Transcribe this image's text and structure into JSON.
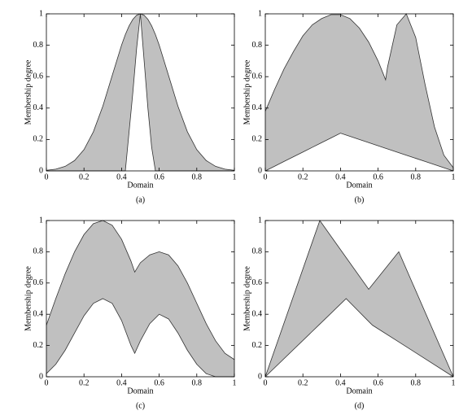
{
  "chart_data": [
    {
      "type": "band",
      "caption": "(a)",
      "xlabel": "Domain",
      "ylabel": "Membership degree",
      "color": "#c0c0c0",
      "x": [
        0,
        0.05,
        0.1,
        0.15,
        0.2,
        0.25,
        0.3,
        0.35,
        0.4,
        0.42,
        0.44,
        0.46,
        0.48,
        0.5,
        0.52,
        0.54,
        0.56,
        0.58,
        0.6,
        0.65,
        0.7,
        0.75,
        0.8,
        0.85,
        0.9,
        0.95,
        1
      ],
      "upper": [
        0.004,
        0.011,
        0.029,
        0.066,
        0.135,
        0.249,
        0.411,
        0.607,
        0.801,
        0.868,
        0.923,
        0.965,
        0.991,
        1,
        0.991,
        0.965,
        0.923,
        0.868,
        0.801,
        0.607,
        0.411,
        0.249,
        0.135,
        0.066,
        0.029,
        0.011,
        0.004
      ],
      "lower": [
        0,
        0,
        0,
        0,
        0,
        0,
        0,
        0,
        0,
        0,
        0.25,
        0.5,
        0.78,
        1,
        0.7,
        0.4,
        0.15,
        0,
        0,
        0,
        0,
        0,
        0,
        0,
        0,
        0,
        0
      ],
      "xlim": [
        0,
        1
      ],
      "ylim": [
        0,
        1
      ],
      "xticks": [
        0,
        0.2,
        0.4,
        0.6,
        0.8,
        1
      ],
      "yticks": [
        0,
        0.2,
        0.4,
        0.6,
        0.8,
        1
      ]
    },
    {
      "type": "band",
      "caption": "(b)",
      "xlabel": "Domain",
      "ylabel": "Membership degree",
      "color": "#c0c0c0",
      "x": [
        0,
        0.05,
        0.1,
        0.15,
        0.2,
        0.25,
        0.3,
        0.35,
        0.4,
        0.45,
        0.5,
        0.55,
        0.6,
        0.64,
        0.65,
        0.7,
        0.75,
        0.8,
        0.85,
        0.9,
        0.95,
        1
      ],
      "upper": [
        0.38,
        0.52,
        0.65,
        0.76,
        0.86,
        0.93,
        0.97,
        0.995,
        0.995,
        0.97,
        0.91,
        0.82,
        0.7,
        0.58,
        0.66,
        0.93,
        1,
        0.85,
        0.55,
        0.28,
        0.1,
        0.02
      ],
      "lower": [
        0,
        0.03,
        0.06,
        0.09,
        0.12,
        0.15,
        0.18,
        0.21,
        0.24,
        0.22,
        0.2,
        0.18,
        0.16,
        0.144,
        0.14,
        0.12,
        0.1,
        0.08,
        0.06,
        0.04,
        0.02,
        0
      ],
      "xlim": [
        0,
        1
      ],
      "ylim": [
        0,
        1
      ],
      "xticks": [
        0,
        0.2,
        0.4,
        0.6,
        0.8,
        1
      ],
      "yticks": [
        0,
        0.2,
        0.4,
        0.6,
        0.8,
        1
      ]
    },
    {
      "type": "band",
      "caption": "(c)",
      "xlabel": "Domain",
      "ylabel": "Membership degree",
      "color": "#c0c0c0",
      "x": [
        0,
        0.05,
        0.1,
        0.15,
        0.2,
        0.25,
        0.3,
        0.35,
        0.4,
        0.45,
        0.47,
        0.5,
        0.55,
        0.6,
        0.65,
        0.7,
        0.75,
        0.8,
        0.85,
        0.9,
        0.95,
        1
      ],
      "upper": [
        0.33,
        0.5,
        0.66,
        0.8,
        0.91,
        0.98,
        1,
        0.97,
        0.88,
        0.74,
        0.67,
        0.73,
        0.78,
        0.8,
        0.78,
        0.71,
        0.6,
        0.47,
        0.34,
        0.23,
        0.15,
        0.11
      ],
      "lower": [
        0.02,
        0.08,
        0.17,
        0.28,
        0.39,
        0.47,
        0.5,
        0.47,
        0.36,
        0.2,
        0.15,
        0.23,
        0.34,
        0.4,
        0.37,
        0.28,
        0.17,
        0.08,
        0.02,
        0,
        0,
        0
      ],
      "xlim": [
        0,
        1
      ],
      "ylim": [
        0,
        1
      ],
      "xticks": [
        0,
        0.2,
        0.4,
        0.6,
        0.8,
        1
      ],
      "yticks": [
        0,
        0.2,
        0.4,
        0.6,
        0.8,
        1
      ]
    },
    {
      "type": "band",
      "caption": "(d)",
      "xlabel": "Domain",
      "ylabel": "Membership degree",
      "color": "#c0c0c0",
      "x": [
        0,
        0.29,
        0.43,
        0.55,
        0.57,
        0.71,
        1
      ],
      "upper": [
        0,
        1,
        0.763,
        0.56,
        0.59,
        0.8,
        0
      ],
      "lower": [
        0,
        0.337,
        0.5,
        0.354,
        0.33,
        0.223,
        0
      ],
      "xlim": [
        0,
        1
      ],
      "ylim": [
        0,
        1
      ],
      "xticks": [
        0,
        0.2,
        0.4,
        0.6,
        0.8,
        1
      ],
      "yticks": [
        0,
        0.2,
        0.4,
        0.6,
        0.8,
        1
      ]
    }
  ]
}
